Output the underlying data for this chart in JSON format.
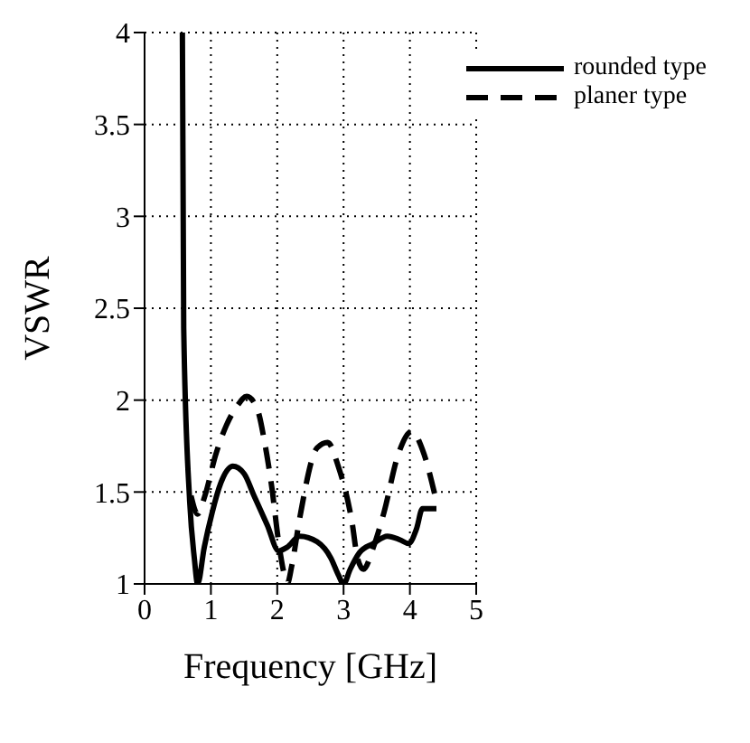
{
  "chart_data": {
    "type": "line",
    "xlabel": "Frequency [GHz]",
    "ylabel": "VSWR",
    "xlim": [
      0,
      5
    ],
    "xticks": [
      0,
      1,
      2,
      3,
      4,
      5
    ],
    "ylim": [
      1,
      4
    ],
    "yticks": [
      1,
      1.5,
      2,
      2.5,
      3,
      3.5,
      4
    ],
    "grid": true,
    "legend": "top right",
    "series": [
      {
        "name": "rounded type",
        "color": "#000000",
        "line_style": "solid",
        "x": [
          0.57,
          0.59,
          0.68,
          0.75,
          0.8,
          0.9,
          1.02,
          1.15,
          1.33,
          1.5,
          1.65,
          1.85,
          2.02,
          2.15,
          2.34,
          2.6,
          2.81,
          2.92,
          3.0,
          3.1,
          3.24,
          3.45,
          3.66,
          3.85,
          3.98,
          4.1,
          4.19,
          4.4
        ],
        "values": [
          4,
          2.39,
          1.45,
          1.14,
          1.0,
          1.2,
          1.39,
          1.55,
          1.64,
          1.6,
          1.48,
          1.32,
          1.18,
          1.2,
          1.26,
          1.23,
          1.14,
          1.05,
          1.0,
          1.08,
          1.17,
          1.22,
          1.26,
          1.24,
          1.22,
          1.3,
          1.41,
          1.41
        ]
      },
      {
        "name": "planer type",
        "color": "#000000",
        "line_style": "dashed",
        "x": [
          0.7,
          0.8,
          0.91,
          1.07,
          1.23,
          1.4,
          1.54,
          1.7,
          1.81,
          1.92,
          2.02,
          2.1,
          2.15,
          2.22,
          2.34,
          2.6,
          2.76,
          2.92,
          3.13,
          3.21,
          3.3,
          3.45,
          3.61,
          3.82,
          4.03,
          4.19,
          4.38
        ],
        "values": [
          1.48,
          1.38,
          1.48,
          1.7,
          1.86,
          1.97,
          2.02,
          1.95,
          1.77,
          1.52,
          1.23,
          1.06,
          1.0,
          1.1,
          1.36,
          1.74,
          1.77,
          1.64,
          1.33,
          1.14,
          1.08,
          1.2,
          1.39,
          1.7,
          1.83,
          1.73,
          1.48
        ]
      }
    ]
  }
}
